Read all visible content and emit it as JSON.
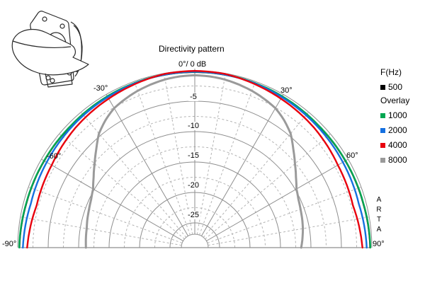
{
  "title_block": {
    "app_watermark_letters": [
      "A",
      "R",
      "T",
      "A"
    ]
  },
  "chart_data": {
    "type": "line",
    "subtype": "half-polar-directivity",
    "title": "Directivity pattern",
    "apex_label": "0°/ 0 dB",
    "angle_tick_labels": {
      "m30": "-30°",
      "p30": "30°",
      "m60": "-60°",
      "p60": "60°",
      "m90": "-90°",
      "p90": "90°"
    },
    "db_tick_labels": [
      "-5",
      "-10",
      "-15",
      "-20",
      "-25"
    ],
    "db_axis": {
      "max": 0,
      "min": -25,
      "solid_ring_step_db": 5,
      "dashed_ring_step_db": 2.5
    },
    "angle_axis": {
      "min_deg": -90,
      "max_deg": 90,
      "solid_ray_step_deg": 30,
      "dashed_ray_step_deg": 10
    },
    "grid_colors": {
      "solid": "#8e8e8e",
      "dashed": "#b4b4b4"
    },
    "series": [
      {
        "name": "500",
        "color": "#000000",
        "width": 2,
        "points": [
          [
            -90,
            -0.3
          ],
          [
            -75,
            -0.5
          ],
          [
            -60,
            -0.55
          ],
          [
            -45,
            -0.55
          ],
          [
            -30,
            -0.4
          ],
          [
            -15,
            -0.27
          ],
          [
            0,
            -0.23
          ],
          [
            15,
            -0.27
          ],
          [
            30,
            -0.4
          ],
          [
            45,
            -0.55
          ],
          [
            60,
            -0.55
          ],
          [
            75,
            -0.5
          ],
          [
            90,
            -0.3
          ]
        ]
      },
      {
        "name": "1000",
        "color": "#00a651",
        "width": 2.4,
        "points": [
          [
            -90,
            -0.25
          ],
          [
            -75,
            -0.45
          ],
          [
            -60,
            -0.5
          ],
          [
            -45,
            -0.5
          ],
          [
            -30,
            -0.35
          ],
          [
            -15,
            -0.22
          ],
          [
            0,
            -0.18
          ],
          [
            15,
            -0.22
          ],
          [
            30,
            -0.35
          ],
          [
            45,
            -0.5
          ],
          [
            60,
            -0.5
          ],
          [
            75,
            -0.45
          ],
          [
            90,
            -0.25
          ]
        ]
      },
      {
        "name": "2000",
        "color": "#1570e0",
        "width": 2.4,
        "points": [
          [
            -90,
            -0.85
          ],
          [
            -75,
            -1.2
          ],
          [
            -60,
            -1.0
          ],
          [
            -45,
            -0.75
          ],
          [
            -30,
            -0.5
          ],
          [
            -15,
            -0.25
          ],
          [
            0,
            -0.15
          ],
          [
            15,
            -0.25
          ],
          [
            30,
            -0.5
          ],
          [
            45,
            -0.75
          ],
          [
            60,
            -1.0
          ],
          [
            75,
            -1.2
          ],
          [
            90,
            -0.85
          ]
        ]
      },
      {
        "name": "4000",
        "color": "#e8000d",
        "width": 2.4,
        "points": [
          [
            -90,
            -1.55
          ],
          [
            -75,
            -2.2
          ],
          [
            -60,
            -1.95
          ],
          [
            -45,
            -1.3
          ],
          [
            -30,
            -0.8
          ],
          [
            -20,
            -0.45
          ],
          [
            -10,
            -0.1
          ],
          [
            0,
            -0.02
          ],
          [
            10,
            -0.1
          ],
          [
            20,
            -0.45
          ],
          [
            30,
            -0.8
          ],
          [
            45,
            -1.3
          ],
          [
            60,
            -1.95
          ],
          [
            75,
            -2.2
          ],
          [
            90,
            -1.55
          ]
        ]
      },
      {
        "name": "8000",
        "color": "#9a9a9a",
        "width": 3,
        "points": [
          [
            -90,
            -11.2
          ],
          [
            -80,
            -11.05
          ],
          [
            -70,
            -10.6
          ],
          [
            -65,
            -10.3
          ],
          [
            -60,
            -9.8
          ],
          [
            -55,
            -8.8
          ],
          [
            -50,
            -7.6
          ],
          [
            -45,
            -6.2
          ],
          [
            -40,
            -4.6
          ],
          [
            -35,
            -3.5
          ],
          [
            -30,
            -2.6
          ],
          [
            -25,
            -2.1
          ],
          [
            -20,
            -1.65
          ],
          [
            -15,
            -1.3
          ],
          [
            -10,
            -1.0
          ],
          [
            -5,
            -0.82
          ],
          [
            0,
            -0.75
          ],
          [
            5,
            -0.82
          ],
          [
            10,
            -1.0
          ],
          [
            15,
            -1.3
          ],
          [
            20,
            -1.65
          ],
          [
            25,
            -2.1
          ],
          [
            30,
            -2.6
          ],
          [
            35,
            -3.5
          ],
          [
            40,
            -4.6
          ],
          [
            45,
            -6.2
          ],
          [
            50,
            -7.6
          ],
          [
            55,
            -8.8
          ],
          [
            60,
            -9.8
          ],
          [
            65,
            -10.3
          ],
          [
            70,
            -10.6
          ],
          [
            80,
            -11.05
          ],
          [
            90,
            -11.6
          ]
        ]
      }
    ]
  },
  "legend": {
    "header": "F(Hz)",
    "main_series": {
      "label": "500",
      "color": "#000000"
    },
    "overlay_header": "Overlay",
    "overlay_series": [
      {
        "label": "1000",
        "color": "#00a651"
      },
      {
        "label": "2000",
        "color": "#1570e0"
      },
      {
        "label": "4000",
        "color": "#e8000d"
      },
      {
        "label": "8000",
        "color": "#9a9a9a"
      }
    ]
  }
}
